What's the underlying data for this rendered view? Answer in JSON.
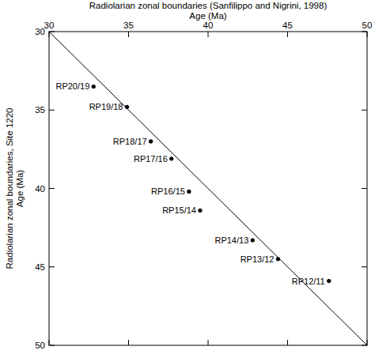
{
  "chart_data": {
    "type": "scatter",
    "title": "Radiolarian zonal boundaries (Sanfilippo and Nigrini, 1998)",
    "x_label": "Age (Ma)",
    "y_label": [
      "Radiolarian zonal boundaries, Site 1220",
      "Age (Ma)"
    ],
    "labels": [
      "RP20/19",
      "RP19/18",
      "RP18/17",
      "RP17/16",
      "RP16/15",
      "RP15/14",
      "RP14/13",
      "RP13/12",
      "RP12/11"
    ],
    "x": [
      32.8,
      34.9,
      36.4,
      37.7,
      38.8,
      39.5,
      42.8,
      44.4,
      47.6
    ],
    "y": [
      33.5,
      34.8,
      37.0,
      38.1,
      40.2,
      41.4,
      43.3,
      44.5,
      45.9
    ],
    "diagonal": {
      "x": [
        30,
        50
      ],
      "y": [
        30,
        50
      ]
    },
    "xlim": [
      30,
      50
    ],
    "xticks": [
      30,
      35,
      40,
      45,
      50
    ],
    "ylim": [
      50,
      30
    ],
    "yticks": [
      30,
      35,
      40,
      45,
      50
    ],
    "color": "#000000",
    "marker": "circle",
    "grid": false
  }
}
